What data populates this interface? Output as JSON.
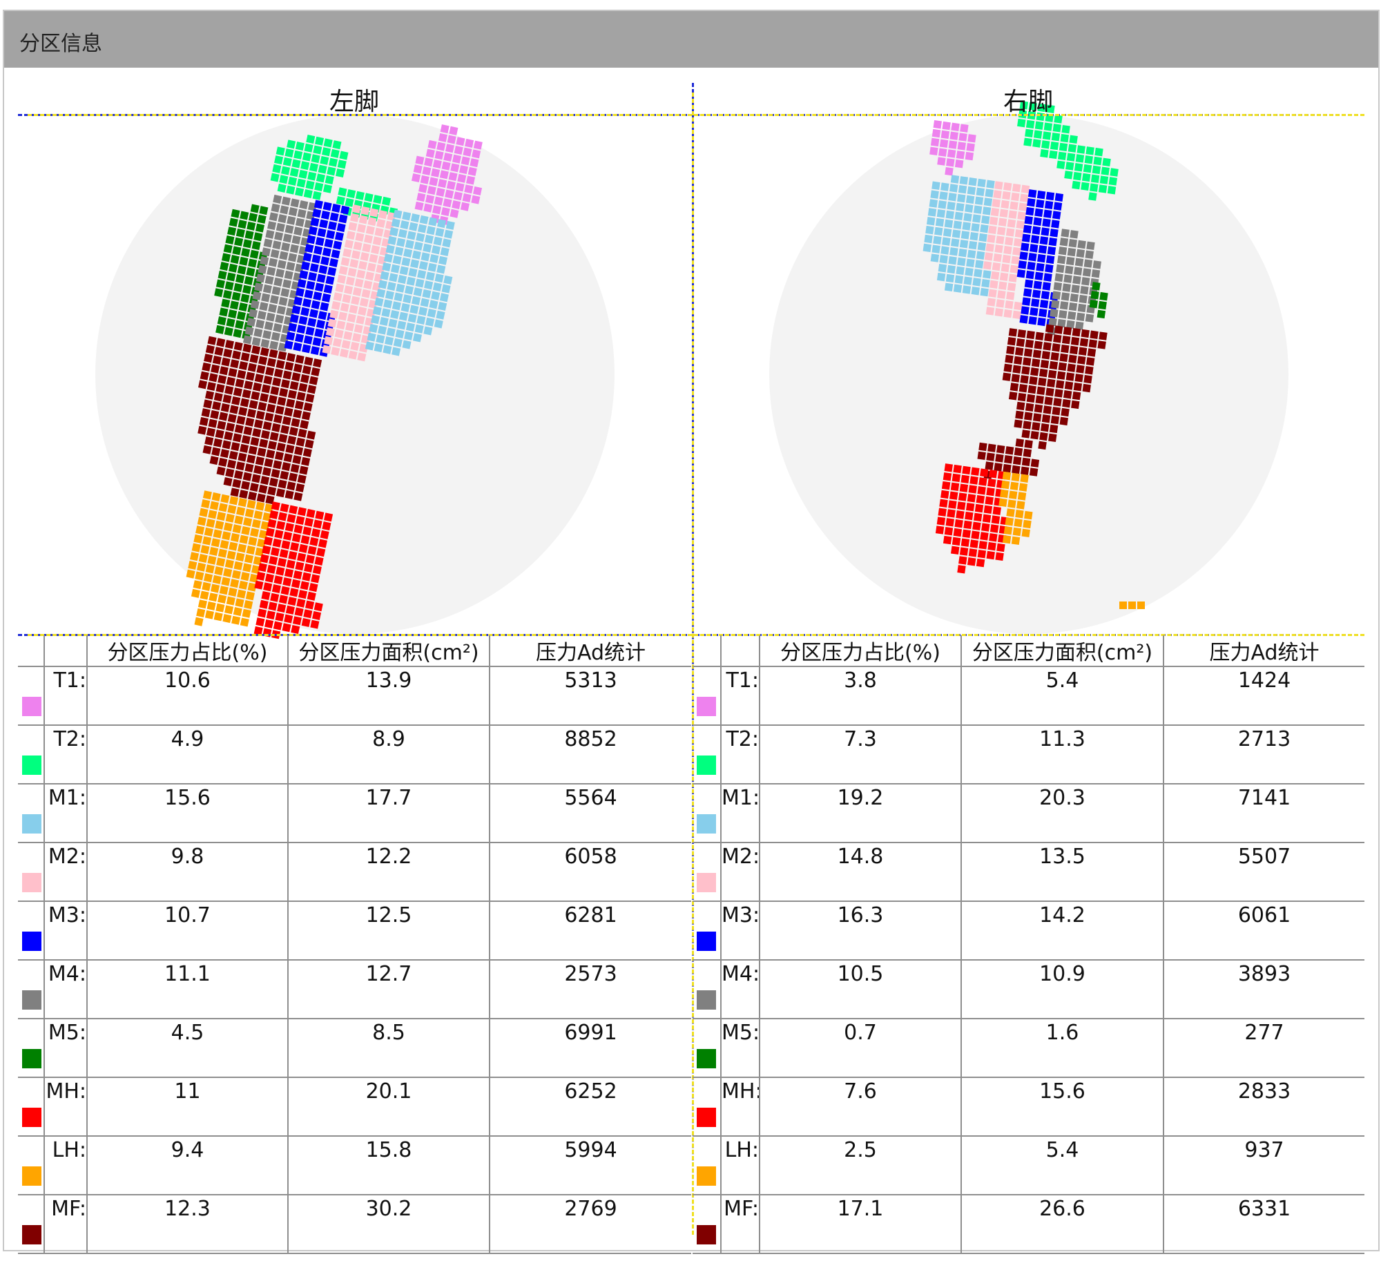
{
  "panel": {
    "title": "分区信息"
  },
  "left": {
    "title": "左脚",
    "headers": [
      "分区压力占比(%)",
      "分区压力面积(cm²)",
      "压力Ad统计"
    ],
    "rows": [
      {
        "zone": "T1:",
        "color": "#ee82ee",
        "ratio": "10.6",
        "area": "13.9",
        "ad": "5313"
      },
      {
        "zone": "T2:",
        "color": "#00ff7f",
        "ratio": "4.9",
        "area": "8.9",
        "ad": "8852"
      },
      {
        "zone": "M1:",
        "color": "#87ceeb",
        "ratio": "15.6",
        "area": "17.7",
        "ad": "5564"
      },
      {
        "zone": "M2:",
        "color": "#ffc0cb",
        "ratio": "9.8",
        "area": "12.2",
        "ad": "6058"
      },
      {
        "zone": "M3:",
        "color": "#0000ff",
        "ratio": "10.7",
        "area": "12.5",
        "ad": "6281"
      },
      {
        "zone": "M4:",
        "color": "#808080",
        "ratio": "11.1",
        "area": "12.7",
        "ad": "2573"
      },
      {
        "zone": "M5:",
        "color": "#008000",
        "ratio": "4.5",
        "area": "8.5",
        "ad": "6991"
      },
      {
        "zone": "MH:",
        "color": "#ff0000",
        "ratio": "11",
        "area": "20.1",
        "ad": "6252"
      },
      {
        "zone": "LH:",
        "color": "#ffa500",
        "ratio": "9.4",
        "area": "15.8",
        "ad": "5994"
      },
      {
        "zone": "MF:",
        "color": "#800000",
        "ratio": "12.3",
        "area": "30.2",
        "ad": "2769"
      }
    ]
  },
  "right": {
    "title": "右脚",
    "headers": [
      "分区压力占比(%)",
      "分区压力面积(cm²)",
      "压力Ad统计"
    ],
    "rows": [
      {
        "zone": "T1:",
        "color": "#ee82ee",
        "ratio": "3.8",
        "area": "5.4",
        "ad": "1424"
      },
      {
        "zone": "T2:",
        "color": "#00ff7f",
        "ratio": "7.3",
        "area": "11.3",
        "ad": "2713"
      },
      {
        "zone": "M1:",
        "color": "#87ceeb",
        "ratio": "19.2",
        "area": "20.3",
        "ad": "7141"
      },
      {
        "zone": "M2:",
        "color": "#ffc0cb",
        "ratio": "14.8",
        "area": "13.5",
        "ad": "5507"
      },
      {
        "zone": "M3:",
        "color": "#0000ff",
        "ratio": "16.3",
        "area": "14.2",
        "ad": "6061"
      },
      {
        "zone": "M4:",
        "color": "#808080",
        "ratio": "10.5",
        "area": "10.9",
        "ad": "3893"
      },
      {
        "zone": "M5:",
        "color": "#008000",
        "ratio": "0.7",
        "area": "1.6",
        "ad": "277"
      },
      {
        "zone": "MH:",
        "color": "#ff0000",
        "ratio": "7.6",
        "area": "15.6",
        "ad": "2833"
      },
      {
        "zone": "LH:",
        "color": "#ffa500",
        "ratio": "2.5",
        "area": "5.4",
        "ad": "937"
      },
      {
        "zone": "MF:",
        "color": "#800000",
        "ratio": "17.1",
        "area": "26.6",
        "ad": "6331"
      }
    ]
  },
  "colors": {
    "header_bg": "#a3a3a3",
    "guide_blue": "#1f2bd6",
    "guide_yellow": "#f0e020",
    "circle_bg": "#f3f3f3"
  }
}
